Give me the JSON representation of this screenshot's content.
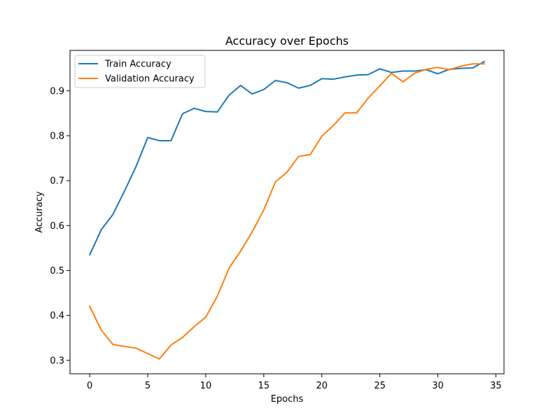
{
  "chart_data": {
    "type": "line",
    "title": "Accuracy over Epochs",
    "xlabel": "Epochs",
    "ylabel": "Accuracy",
    "xlim": [
      -1.7,
      35.7
    ],
    "ylim": [
      0.27,
      0.99
    ],
    "xticks": [
      0,
      5,
      10,
      15,
      20,
      25,
      30,
      35
    ],
    "yticks": [
      0.3,
      0.4,
      0.5,
      0.6,
      0.7,
      0.8,
      0.9
    ],
    "grid": false,
    "legend_position": "upper left",
    "x": [
      0,
      1,
      2,
      3,
      4,
      5,
      6,
      7,
      8,
      9,
      10,
      11,
      12,
      13,
      14,
      15,
      16,
      17,
      18,
      19,
      20,
      21,
      22,
      23,
      24,
      25,
      26,
      27,
      28,
      29,
      30,
      31,
      32,
      33,
      34
    ],
    "series": [
      {
        "name": "Train Accuracy",
        "color": "#1f77b4",
        "values": [
          0.535,
          0.591,
          0.625,
          0.677,
          0.732,
          0.796,
          0.789,
          0.789,
          0.849,
          0.861,
          0.854,
          0.853,
          0.89,
          0.912,
          0.893,
          0.903,
          0.923,
          0.918,
          0.906,
          0.912,
          0.927,
          0.926,
          0.931,
          0.935,
          0.936,
          0.949,
          0.941,
          0.944,
          0.944,
          0.947,
          0.938,
          0.948,
          0.95,
          0.951,
          0.965
        ]
      },
      {
        "name": "Validation Accuracy",
        "color": "#ff7f0e",
        "values": [
          0.42,
          0.367,
          0.335,
          0.331,
          0.327,
          0.315,
          0.303,
          0.334,
          0.351,
          0.375,
          0.396,
          0.443,
          0.505,
          0.543,
          0.586,
          0.635,
          0.697,
          0.719,
          0.754,
          0.758,
          0.799,
          0.823,
          0.851,
          0.851,
          0.884,
          0.911,
          0.939,
          0.92,
          0.939,
          0.948,
          0.952,
          0.947,
          0.955,
          0.96,
          0.96
        ]
      }
    ]
  }
}
